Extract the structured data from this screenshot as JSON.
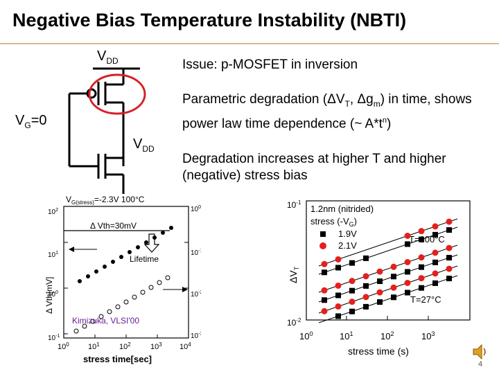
{
  "slide": {
    "title": "Negative Bias Temperature Instability (NBTI)",
    "page_number": "4"
  },
  "bullets": [
    {
      "text": "Issue: p-MOSFET in inversion"
    },
    {
      "text_a": "Parametric degradation (",
      "delta1": "Δ",
      "v": "V",
      "v_sub": "T",
      "comma": ", ",
      "delta2": "Δ",
      "g": "g",
      "g_sub": "m",
      "text_b": ") in time, shows power law time dependence (~ A*t",
      "n_sup": "n",
      "text_c": ")"
    },
    {
      "text": "Degradation increases at higher T and higher (negative) stress bias"
    }
  ],
  "circuit": {
    "vdd_top_main": "V",
    "vdd_top_sub": "DD",
    "vg_main": "V",
    "vg_sub": "G",
    "vg_value": "=0",
    "vdd_mid_main": "V",
    "vdd_mid_sub": "DD"
  },
  "left_plot": {
    "header": "V",
    "header_sub": "G(stress)",
    "header_rest": "=-2.3V 100°C",
    "annotation_dvth": "Δ Vth=30mV",
    "annotation_lifetime": "Lifetime",
    "ylabel_left": "Δ Vth[mV]",
    "ylabel_right": "Δ Gm/Gm",
    "ylabel_right_sub": "0",
    "xlabel": "stress time[sec]",
    "citation": "Kimizuka, VLSI'00",
    "left_ticks": [
      "10",
      "10",
      "10",
      "10"
    ],
    "left_tick_exp": [
      "2",
      "1",
      "0",
      "-1"
    ],
    "right_ticks": [
      "10",
      "10",
      "10",
      "10"
    ],
    "right_tick_exp": [
      "0",
      "-1",
      "-2",
      "-3"
    ],
    "x_ticks": [
      "10",
      "10",
      "10",
      "10",
      "10"
    ],
    "x_tick_exp": [
      "0",
      "1",
      "2",
      "3",
      "4"
    ]
  },
  "right_plot": {
    "legend_title_1": "1.2nm (nitrided)",
    "legend_title_2": "stress (-V",
    "legend_title_2_sub": "G",
    "legend_title_2_end": ")",
    "legend_19": "1.9V",
    "legend_21": "2.1V",
    "temp_high": "T=100°C",
    "temp_low": "T=27°C",
    "ylabel": "ΔV",
    "ylabel_sub": "T",
    "xlabel": "stress time (s)",
    "y_ticks": [
      "10",
      "10"
    ],
    "y_tick_exp": [
      "-1",
      "-2"
    ],
    "x_ticks": [
      "10",
      "10",
      "10",
      "10"
    ],
    "x_tick_exp": [
      "0",
      "1",
      "2",
      "3"
    ],
    "colors": {
      "red": "#e5201c",
      "black": "#000000"
    }
  },
  "colors": {
    "circle": "#d62027",
    "rule": "#d9b98a"
  }
}
